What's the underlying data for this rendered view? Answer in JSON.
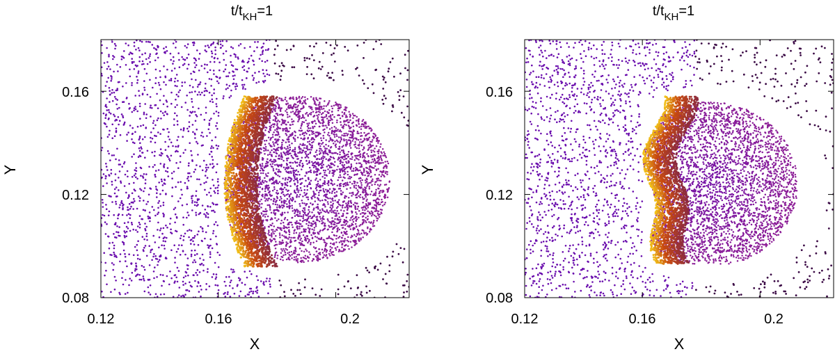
{
  "chart_data": [
    {
      "type": "scatter",
      "title": "t/t",
      "title_sub": "KH",
      "title_tail": "=1",
      "xlabel": "X",
      "ylabel": "Y",
      "xlim": [
        0.12,
        0.225
      ],
      "ylim": [
        0.08,
        0.18
      ],
      "xticks": [
        0.12,
        0.16,
        0.2
      ],
      "xtick_labels": [
        "0.12",
        "0.16",
        "0.2"
      ],
      "yticks": [
        0.08,
        0.12,
        0.16
      ],
      "ytick_labels": [
        "0.08",
        "0.12",
        "0.16"
      ],
      "grid": false,
      "colors": {
        "cold": "#6a0dad",
        "warm": "#c84a10",
        "hot": "#f2c21a",
        "sparse": "#3b0a45"
      },
      "blob": {
        "center": [
          0.188,
          0.126
        ],
        "front_x": 0.162,
        "y_range": [
          0.092,
          0.158
        ],
        "front_shape": "smooth-arc"
      }
    },
    {
      "type": "scatter",
      "title": "t/t",
      "title_sub": "KH",
      "title_tail": "=1",
      "xlabel": "X",
      "ylabel": "Y",
      "xlim": [
        0.12,
        0.225
      ],
      "ylim": [
        0.08,
        0.18
      ],
      "xticks": [
        0.12,
        0.16,
        0.2
      ],
      "xtick_labels": [
        "0.12",
        "0.16",
        "0.2"
      ],
      "yticks": [
        0.08,
        0.12,
        0.16
      ],
      "ytick_labels": [
        "0.08",
        "0.12",
        "0.16"
      ],
      "grid": false,
      "colors": {
        "cold": "#6a0dad",
        "warm": "#c84a10",
        "hot": "#f2c21a",
        "sparse": "#3b0a45"
      },
      "blob": {
        "center": [
          0.183,
          0.124
        ],
        "front_x": 0.162,
        "y_range": [
          0.093,
          0.158
        ],
        "front_shape": "wavy"
      }
    }
  ]
}
